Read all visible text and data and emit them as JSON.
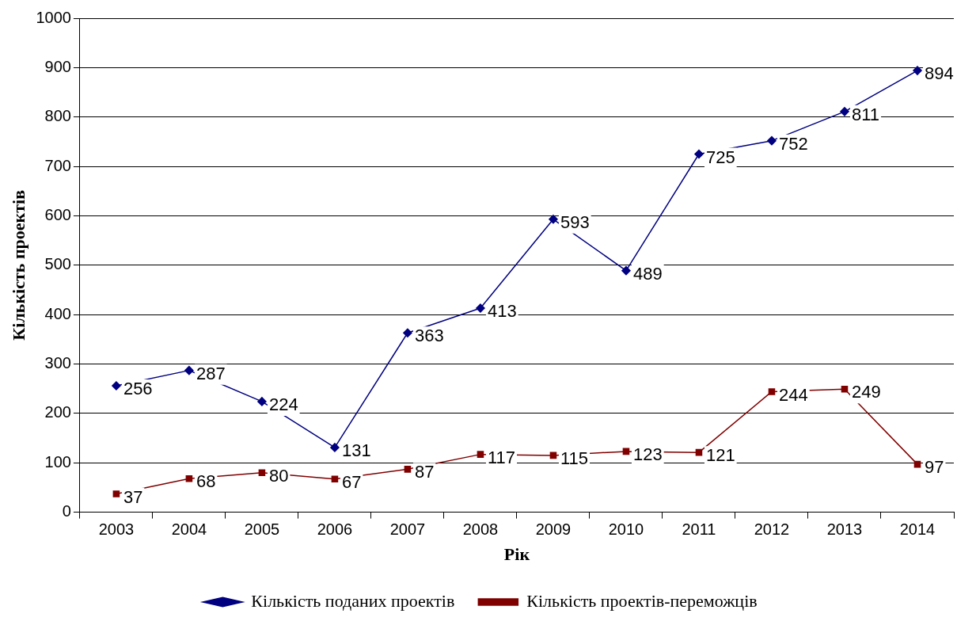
{
  "chart_data": {
    "type": "line",
    "xlabel": "Рік",
    "ylabel": "Кількість проектів",
    "categories": [
      "2003",
      "2004",
      "2005",
      "2006",
      "2007",
      "2008",
      "2009",
      "2010",
      "2011",
      "2012",
      "2013",
      "2014"
    ],
    "series": [
      {
        "name": "Кількість поданих проектів",
        "color": "#000080",
        "marker": "diamond",
        "values": [
          256,
          287,
          224,
          131,
          363,
          413,
          593,
          489,
          725,
          752,
          811,
          894
        ]
      },
      {
        "name": "Кількість проектів-переможців",
        "color": "#800000",
        "marker": "square",
        "values": [
          37,
          68,
          80,
          67,
          87,
          117,
          115,
          123,
          121,
          244,
          249,
          97
        ]
      }
    ],
    "ylim": [
      0,
      1000
    ],
    "yticks": [
      0,
      100,
      200,
      300,
      400,
      500,
      600,
      700,
      800,
      900,
      1000
    ],
    "grid": "y",
    "legend": "bottom",
    "data_labels": true,
    "line_style": "solid"
  }
}
